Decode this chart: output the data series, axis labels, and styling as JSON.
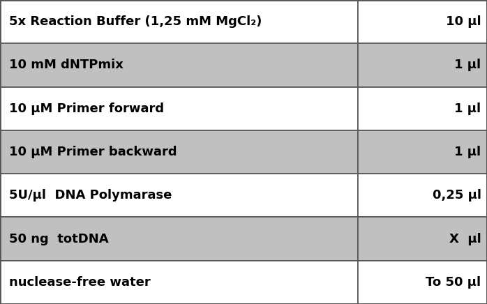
{
  "rows": [
    {
      "label": "5x Reaction Buffer (1,25 mM MgCl₂)",
      "value": "10 μl",
      "bg": "#ffffff"
    },
    {
      "label": "10 mM dNTPmix",
      "value": "1 μl",
      "bg": "#c0c0c0"
    },
    {
      "label": "10 μM Primer forward",
      "value": "1 μl",
      "bg": "#ffffff"
    },
    {
      "label": "10 μM Primer backward",
      "value": "1 μl",
      "bg": "#c0c0c0"
    },
    {
      "label": "5U/μl  DNA Polymarase",
      "value": "0,25 μl",
      "bg": "#ffffff"
    },
    {
      "label": "50 ng  totDNA",
      "value": "X  μl",
      "bg": "#c0c0c0"
    },
    {
      "label": "nuclease-free water",
      "value": "To 50 μl",
      "bg": "#ffffff"
    }
  ],
  "col_split": 0.735,
  "border_color": "#555555",
  "text_color": "#000000",
  "font_size": 13.0
}
